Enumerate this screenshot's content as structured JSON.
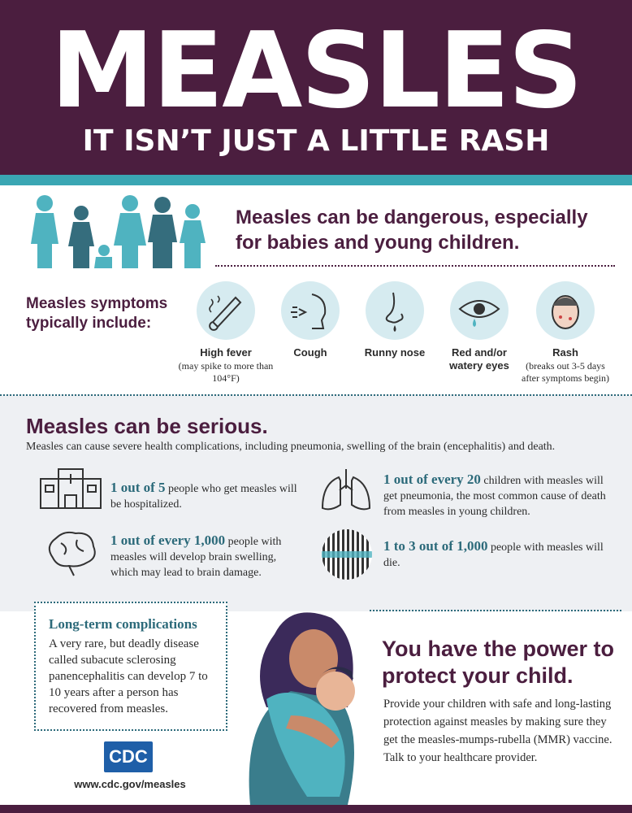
{
  "header": {
    "title": "MEASLES",
    "subtitle": "IT ISN’T JUST A LITTLE RASH"
  },
  "intro": {
    "text": "Measles can be dangerous, especially for babies and young children."
  },
  "symptoms": {
    "heading": "Measles symptoms typically include:",
    "items": [
      {
        "label": "High fever",
        "note": "(may spike to more than 104°F)"
      },
      {
        "label": "Cough"
      },
      {
        "label": "Runny nose"
      },
      {
        "label": "Red and/or watery eyes"
      },
      {
        "label": "Rash",
        "note": "(breaks out 3-5 days after symptoms begin)"
      }
    ]
  },
  "serious": {
    "heading": "Measles can be serious.",
    "text": "Measles can cause severe health complications, including pneumonia, swelling of the brain (encephalitis) and death.",
    "stats": [
      {
        "highlight": "1 out of 5",
        "text": "people who get measles will be hospitalized."
      },
      {
        "highlight": "1 out of every 20",
        "text": "children with measles will get pneumonia, the most common cause of death from measles in young children."
      },
      {
        "highlight": "1 out of every 1,000",
        "text": "people with measles will develop brain swelling, which may lead to brain damage."
      },
      {
        "highlight": "1 to 3 out of 1,000",
        "text": "people with measles will die."
      }
    ]
  },
  "long_term": {
    "heading": "Long-term complications",
    "text": "A very rare, but deadly disease called subacute sclerosing panencephalitis can develop 7 to 10 years after a person has recovered from measles."
  },
  "power": {
    "heading": "You have the power to protect your child.",
    "text": "Provide your children with safe and long-lasting protection against measles by making sure they get the measles-mumps-rubella (MMR) vaccine. Talk to your healthcare provider."
  },
  "footer": {
    "logo": "CDC",
    "url": "www.cdc.gov/measles"
  }
}
